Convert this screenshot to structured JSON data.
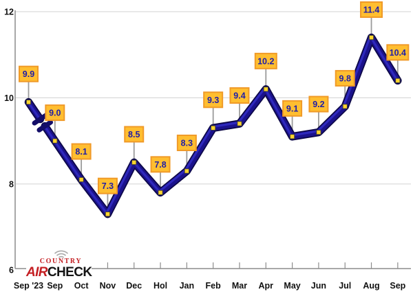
{
  "chart_data": {
    "type": "line",
    "title": "",
    "xlabel": "",
    "ylabel": "",
    "categories": [
      "Sep '23",
      "Sep",
      "Oct",
      "Nov",
      "Dec",
      "Hol",
      "Jan",
      "Feb",
      "Mar",
      "Apr",
      "May",
      "Jun",
      "Jul",
      "Aug",
      "Sep"
    ],
    "values": [
      9.9,
      9.0,
      8.1,
      7.3,
      8.5,
      7.8,
      8.3,
      9.3,
      9.4,
      10.2,
      9.1,
      9.2,
      9.8,
      11.4,
      10.4
    ],
    "point_labels": [
      "9.9",
      "9.0",
      "8.1",
      "7.3",
      "8.5",
      "7.8",
      "8.3",
      "9.3",
      "9.4",
      "10.2",
      "9.1",
      "9.2",
      "9.8",
      "11.4",
      "10.4"
    ],
    "ylim": [
      6,
      12
    ],
    "y_ticks": [
      12,
      10,
      8,
      6
    ],
    "grid": "horizontal",
    "legend": "none",
    "axis_break_between": [
      0,
      1
    ],
    "colors": {
      "line_dark": "#0D0848",
      "line_mid": "#1B128C",
      "line_highlight": "#2F2ABF",
      "break_bar": "#130D68",
      "marker_fill": "#FFD52E",
      "marker_border": "#3B3B3B",
      "label_fill": "#FFBE30",
      "label_border": "#F09A28",
      "label_text": "#1E1EA8",
      "leader": "#9B9B9B",
      "gridline": "#D9D9D9",
      "axis": "#8C8C8C",
      "axis_text": "#111111"
    }
  },
  "logo": {
    "top_text": "COUNTRY",
    "air": "AIR",
    "check": "CHECK",
    "red": "#C41E22",
    "black": "#141414",
    "waves": "#A8A8A8"
  }
}
